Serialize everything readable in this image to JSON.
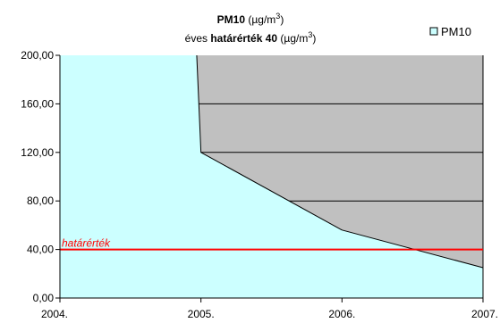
{
  "chart_data": {
    "type": "area",
    "title_main": "PM10",
    "title_unit_open": " (",
    "title_unit_mu": "µg/m",
    "title_unit_exp": "3",
    "title_unit_close": ")",
    "subtitle_prefix": "éves ",
    "subtitle_bold": "határérték 40",
    "subtitle_unit_open": " (",
    "subtitle_unit_mu": "µg/m",
    "subtitle_unit_exp": "3",
    "subtitle_unit_close": ")",
    "x_ticks": [
      "2004.",
      "2005.",
      "2006.",
      "2007."
    ],
    "y_ticks": [
      "0,00",
      "40,00",
      "80,00",
      "120,00",
      "160,00",
      "200,00"
    ],
    "ylim": [
      0,
      200
    ],
    "xlim": [
      2004,
      2007
    ],
    "series": [
      {
        "name": "PM10",
        "color": "#ccffff",
        "x": [
          2004.0,
          2004.97,
          2005.0,
          2006.0,
          2007.0
        ],
        "y": [
          200,
          200,
          120,
          56,
          25
        ]
      }
    ],
    "upper_region_color": "#c0c0c0",
    "limit_line": {
      "value": 40,
      "label": "határérték",
      "color": "#ff0000"
    },
    "legend_position": "top-right",
    "grid": true
  }
}
